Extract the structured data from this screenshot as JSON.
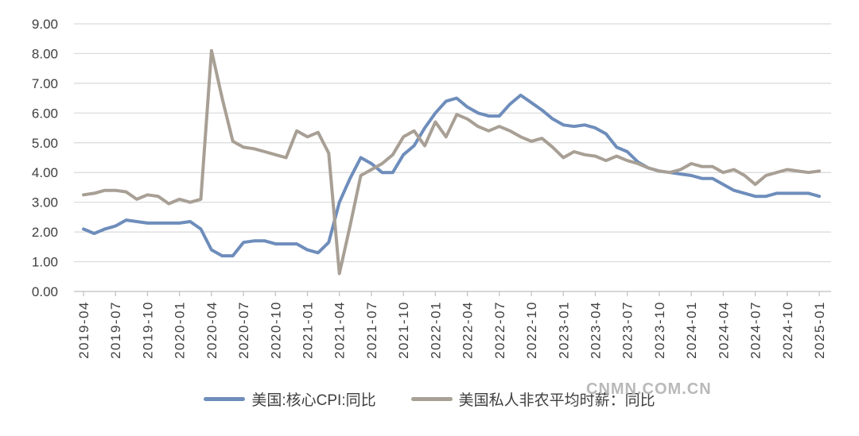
{
  "watermark": {
    "text": "CNMN.COM.CN"
  },
  "colors": {
    "background": "#ffffff",
    "grid": "#d9d9d9",
    "axis": "#bfbfbf",
    "tick_label": "#404040",
    "legend_text": "#3f3f3f",
    "watermark": "#b9b9b9",
    "series_cpi": "#6E8DBB",
    "series_wage": "#A89F95"
  },
  "chart_data": {
    "type": "line",
    "title": "",
    "xlabel": "",
    "ylabel": "",
    "ylim": [
      0,
      9
    ],
    "y_tick_labels": [
      "0.00",
      "1.00",
      "2.00",
      "3.00",
      "4.00",
      "5.00",
      "6.00",
      "7.00",
      "8.00",
      "9.00"
    ],
    "grid": "horizontal",
    "legend_position": "bottom",
    "x_tick_every_months": 3,
    "x_tick_labels": [
      "2019-04",
      "2019-07",
      "2019-10",
      "2020-01",
      "2020-04",
      "2020-07",
      "2020-10",
      "2021-01",
      "2021-04",
      "2021-07",
      "2021-10",
      "2022-01",
      "2022-04",
      "2022-07",
      "2022-10",
      "2023-01",
      "2023-04",
      "2023-07",
      "2023-10",
      "2024-01",
      "2024-04",
      "2024-07",
      "2024-10",
      "2025-01"
    ],
    "x": [
      "2019-04",
      "2019-05",
      "2019-06",
      "2019-07",
      "2019-08",
      "2019-09",
      "2019-10",
      "2019-11",
      "2019-12",
      "2020-01",
      "2020-02",
      "2020-03",
      "2020-04",
      "2020-05",
      "2020-06",
      "2020-07",
      "2020-08",
      "2020-09",
      "2020-10",
      "2020-11",
      "2020-12",
      "2021-01",
      "2021-02",
      "2021-03",
      "2021-04",
      "2021-05",
      "2021-06",
      "2021-07",
      "2021-08",
      "2021-09",
      "2021-10",
      "2021-11",
      "2021-12",
      "2022-01",
      "2022-02",
      "2022-03",
      "2022-04",
      "2022-05",
      "2022-06",
      "2022-07",
      "2022-08",
      "2022-09",
      "2022-10",
      "2022-11",
      "2022-12",
      "2023-01",
      "2023-02",
      "2023-03",
      "2023-04",
      "2023-05",
      "2023-06",
      "2023-07",
      "2023-08",
      "2023-09",
      "2023-10",
      "2023-11",
      "2023-12",
      "2024-01",
      "2024-02",
      "2024-03",
      "2024-04",
      "2024-05",
      "2024-06",
      "2024-07",
      "2024-08",
      "2024-09",
      "2024-10",
      "2024-11",
      "2024-12",
      "2025-01"
    ],
    "series": [
      {
        "name": "美国:核心CPI:同比",
        "color": "#6E8DBB",
        "values": [
          2.1,
          1.95,
          2.1,
          2.2,
          2.4,
          2.35,
          2.3,
          2.3,
          2.3,
          2.3,
          2.35,
          2.1,
          1.4,
          1.2,
          1.2,
          1.65,
          1.7,
          1.7,
          1.6,
          1.6,
          1.6,
          1.4,
          1.3,
          1.65,
          3.0,
          3.8,
          4.5,
          4.3,
          4.0,
          4.0,
          4.6,
          4.9,
          5.5,
          6.0,
          6.4,
          6.5,
          6.2,
          6.0,
          5.9,
          5.9,
          6.3,
          6.6,
          6.35,
          6.1,
          5.8,
          5.6,
          5.55,
          5.6,
          5.5,
          5.3,
          4.85,
          4.7,
          4.35,
          4.15,
          4.05,
          4.0,
          3.95,
          3.9,
          3.8,
          3.8,
          3.6,
          3.4,
          3.3,
          3.2,
          3.2,
          3.3,
          3.3,
          3.3,
          3.3,
          3.2
        ]
      },
      {
        "name": "美国私人非农平均时薪：同比",
        "color": "#A89F95",
        "values": [
          3.25,
          3.3,
          3.4,
          3.4,
          3.35,
          3.1,
          3.25,
          3.2,
          2.95,
          3.1,
          3.0,
          3.1,
          8.1,
          6.5,
          5.05,
          4.85,
          4.8,
          4.7,
          4.6,
          4.5,
          5.4,
          5.2,
          5.35,
          4.65,
          0.6,
          2.2,
          3.9,
          4.1,
          4.3,
          4.6,
          5.2,
          5.4,
          4.9,
          5.7,
          5.2,
          5.95,
          5.8,
          5.55,
          5.4,
          5.55,
          5.4,
          5.2,
          5.05,
          5.15,
          4.85,
          4.5,
          4.7,
          4.6,
          4.55,
          4.4,
          4.55,
          4.4,
          4.3,
          4.15,
          4.05,
          4.0,
          4.1,
          4.3,
          4.2,
          4.2,
          4.0,
          4.1,
          3.9,
          3.6,
          3.9,
          4.0,
          4.1,
          4.05,
          4.0,
          4.05
        ]
      }
    ]
  }
}
